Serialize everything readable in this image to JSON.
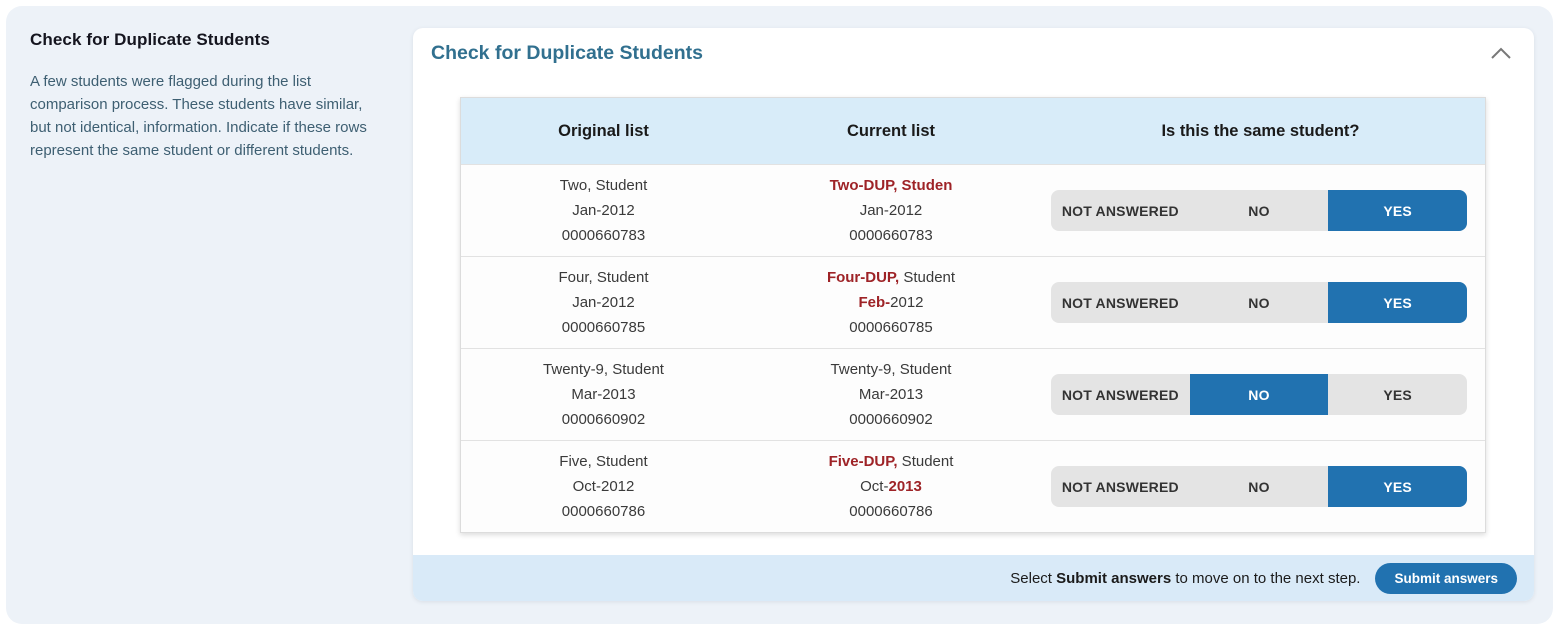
{
  "colors": {
    "page_bg": "#edf2f8",
    "panel_bg": "#ffffff",
    "accent_blue": "#2172b0",
    "header_blue": "#31708f",
    "table_header_bg": "#d8ecf9",
    "footer_bg": "#d9eaf8",
    "flag_red": "#9e2327",
    "segment_bg": "#e4e4e4"
  },
  "sidebar": {
    "title": "Check for Duplicate Students",
    "description": "A few students were flagged during the list comparison process. These students have similar, but not identical, information. Indicate if these rows represent the same student or different students."
  },
  "panel": {
    "title": "Check for Duplicate Students",
    "collapse_icon": "chevron-up"
  },
  "table": {
    "headers": [
      "Original list",
      "Current list",
      "Is this the same student?"
    ],
    "answer_options": [
      "NOT ANSWERED",
      "NO",
      "YES"
    ],
    "rows": [
      {
        "original": {
          "name": "Two, Student",
          "date": "Jan-2012",
          "id": "0000660783"
        },
        "current": {
          "name_parts": [
            {
              "t": "Two-DUP, Studen",
              "red": true
            }
          ],
          "date_parts": [
            {
              "t": "Jan-2012",
              "red": false
            }
          ],
          "id_parts": [
            {
              "t": "0000660783",
              "red": false
            }
          ]
        },
        "answer": "YES"
      },
      {
        "original": {
          "name": "Four, Student",
          "date": "Jan-2012",
          "id": "0000660785"
        },
        "current": {
          "name_parts": [
            {
              "t": "Four-DUP,",
              "red": true
            },
            {
              "t": " Student",
              "red": false
            }
          ],
          "date_parts": [
            {
              "t": "Feb-",
              "red": true
            },
            {
              "t": "2012",
              "red": false
            }
          ],
          "id_parts": [
            {
              "t": "0000660785",
              "red": false
            }
          ]
        },
        "answer": "YES"
      },
      {
        "original": {
          "name": "Twenty-9, Student",
          "date": "Mar-2013",
          "id": "0000660902"
        },
        "current": {
          "name_parts": [
            {
              "t": "Twenty-9, Student",
              "red": false
            }
          ],
          "date_parts": [
            {
              "t": "Mar-2013",
              "red": false
            }
          ],
          "id_parts": [
            {
              "t": "0000660902",
              "red": false
            }
          ]
        },
        "answer": "NO"
      },
      {
        "original": {
          "name": "Five, Student",
          "date": "Oct-2012",
          "id": "0000660786"
        },
        "current": {
          "name_parts": [
            {
              "t": "Five-DUP,",
              "red": true
            },
            {
              "t": " Student",
              "red": false
            }
          ],
          "date_parts": [
            {
              "t": "Oct-",
              "red": false
            },
            {
              "t": "2013",
              "red": true
            }
          ],
          "id_parts": [
            {
              "t": "0000660786",
              "red": false
            }
          ]
        },
        "answer": "YES"
      }
    ]
  },
  "footer": {
    "hint_prefix": "Select ",
    "hint_bold": "Submit answers",
    "hint_suffix": " to move on to the next step.",
    "submit_label": "Submit answers"
  }
}
